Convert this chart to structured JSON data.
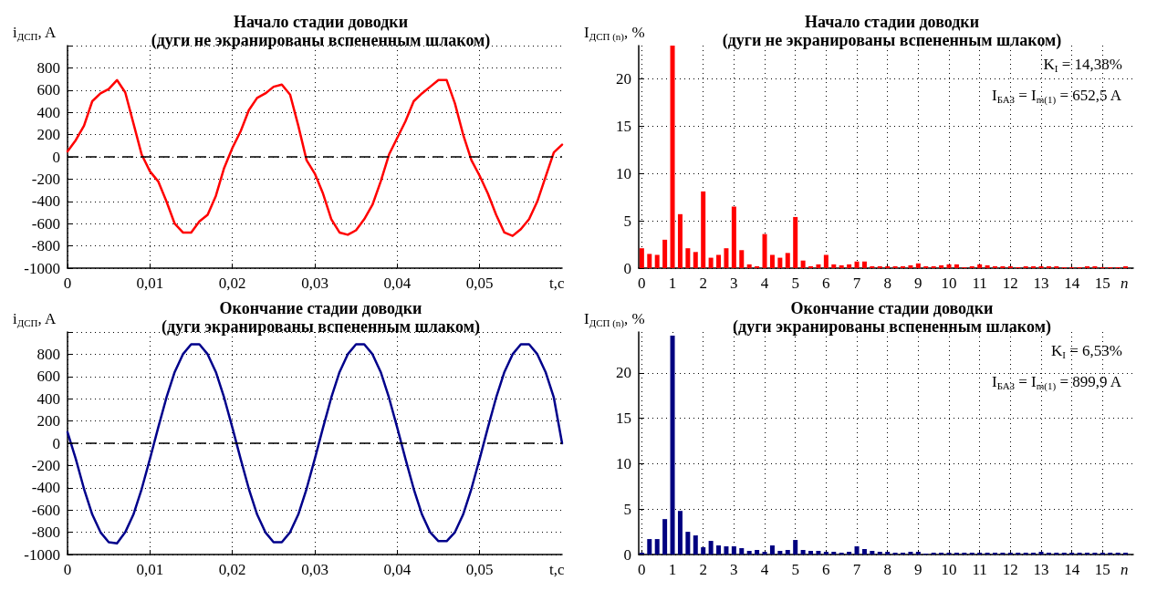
{
  "chart_data": [
    {
      "type": "line",
      "title": "Начало стадии доводки",
      "subtitle": "(дуги не экранированы вспененным шлаком)",
      "xlabel": "t,c",
      "ylabel": "i$_{ДСП}$, A",
      "x": [
        0,
        0.001,
        0.002,
        0.003,
        0.004,
        0.005,
        0.006,
        0.007,
        0.008,
        0.009,
        0.01,
        0.011,
        0.012,
        0.013,
        0.014,
        0.015,
        0.016,
        0.017,
        0.018,
        0.019,
        0.02,
        0.021,
        0.022,
        0.023,
        0.024,
        0.025,
        0.026,
        0.027,
        0.028,
        0.029,
        0.03,
        0.031,
        0.032,
        0.033,
        0.034,
        0.035,
        0.036,
        0.037,
        0.038,
        0.039,
        0.04,
        0.041,
        0.042,
        0.043,
        0.044,
        0.045,
        0.046,
        0.047,
        0.048,
        0.049,
        0.05,
        0.051,
        0.052,
        0.053,
        0.054,
        0.055,
        0.056,
        0.057,
        0.058,
        0.059,
        0.06
      ],
      "series": [
        {
          "color": "#ff0000",
          "values": [
            50,
            150,
            280,
            500,
            570,
            610,
            690,
            580,
            300,
            20,
            -130,
            -220,
            -400,
            -600,
            -680,
            -680,
            -580,
            -520,
            -350,
            -100,
            80,
            230,
            420,
            530,
            570,
            630,
            650,
            560,
            280,
            -30,
            -150,
            -330,
            -560,
            -680,
            -700,
            -660,
            -560,
            -430,
            -220,
            20,
            170,
            320,
            500,
            570,
            630,
            690,
            690,
            480,
            200,
            -30,
            -170,
            -330,
            -520,
            -680,
            -710,
            -650,
            -560,
            -400,
            -180,
            40,
            110
          ]
        }
      ],
      "xlim": [
        0,
        0.06
      ],
      "xticks": [
        0,
        {
          "value": 0.01,
          "label": "0,01"
        },
        {
          "value": 0.02,
          "label": "0,02"
        },
        {
          "value": 0.03,
          "label": "0,03"
        },
        {
          "value": 0.04,
          "label": "0,04"
        },
        {
          "value": 0.05,
          "label": "0,05"
        }
      ],
      "ylim": [
        -1000,
        1000
      ],
      "yticks": [
        -1000,
        -800,
        -600,
        -400,
        -200,
        0,
        200,
        400,
        600,
        800,
        {
          "value": 1000,
          "label": null
        }
      ],
      "ref_lines": [
        {
          "axis": "y",
          "value": 0,
          "color": "#000000",
          "line_style": "dashed"
        }
      ],
      "grid": true,
      "marker": "none",
      "line_style": "solid"
    },
    {
      "type": "bar",
      "title": "Начало стадии доводки",
      "subtitle": "(дуги не экранированы вспененным шлаком)",
      "xlabel": "n",
      "ylabel": "I$_{ДСП (n)}$, %",
      "annotations": [
        "K$_{I}$ = 14,38%",
        "I$_{БАЗ}$ = I$_{m(1)}$ = 652,5 A"
      ],
      "x": [
        0,
        0.25,
        0.5,
        0.75,
        1,
        1.25,
        1.5,
        1.75,
        2,
        2.25,
        2.5,
        2.75,
        3,
        3.25,
        3.5,
        3.75,
        4,
        4.25,
        4.5,
        4.75,
        5,
        5.25,
        5.5,
        5.75,
        6,
        6.25,
        6.5,
        6.75,
        7,
        7.25,
        7.5,
        7.75,
        8,
        8.25,
        8.5,
        8.75,
        9,
        9.25,
        9.5,
        9.75,
        10,
        10.25,
        10.5,
        10.75,
        11,
        11.25,
        11.5,
        11.75,
        12,
        12.25,
        12.5,
        12.75,
        13,
        13.25,
        13.5,
        13.75,
        14,
        14.25,
        14.5,
        14.75,
        15,
        15.25,
        15.5,
        15.75
      ],
      "series": [
        {
          "color": "#ff0000",
          "values": [
            2.1,
            1.5,
            1.4,
            3.0,
            23.5,
            5.7,
            2.1,
            1.7,
            8.1,
            1.1,
            1.4,
            2.1,
            6.5,
            1.9,
            0.4,
            0.2,
            3.6,
            1.4,
            1.1,
            1.6,
            5.4,
            0.8,
            0.2,
            0.4,
            1.4,
            0.4,
            0.3,
            0.4,
            0.7,
            0.7,
            0.2,
            0.2,
            0.2,
            0.2,
            0.2,
            0.3,
            0.5,
            0.2,
            0.2,
            0.3,
            0.4,
            0.4,
            0.1,
            0.2,
            0.4,
            0.3,
            0.2,
            0.2,
            0.2,
            0.1,
            0.2,
            0.2,
            0.2,
            0.2,
            0.2,
            0.1,
            0.1,
            0.1,
            0.2,
            0.2,
            0.1,
            0.1,
            0.1,
            0.2
          ]
        }
      ],
      "xlim": [
        -0.1,
        16
      ],
      "xticks": [
        0,
        1,
        2,
        3,
        4,
        5,
        6,
        7,
        8,
        9,
        10,
        11,
        12,
        13,
        14,
        15
      ],
      "ylim": [
        0,
        23.5
      ],
      "yticks": [
        0,
        5,
        10,
        15,
        20
      ],
      "grid": true
    },
    {
      "type": "line",
      "title": "Окончание стадии доводки",
      "subtitle": "(дуги экранированы вспененным шлаком)",
      "xlabel": "t,c",
      "ylabel": "i$_{ДСП}$, A",
      "x": [
        0,
        0.001,
        0.002,
        0.003,
        0.004,
        0.005,
        0.006,
        0.007,
        0.008,
        0.009,
        0.01,
        0.011,
        0.012,
        0.013,
        0.014,
        0.015,
        0.016,
        0.017,
        0.018,
        0.019,
        0.02,
        0.021,
        0.022,
        0.023,
        0.024,
        0.025,
        0.026,
        0.027,
        0.028,
        0.029,
        0.03,
        0.031,
        0.032,
        0.033,
        0.034,
        0.035,
        0.036,
        0.037,
        0.038,
        0.039,
        0.04,
        0.041,
        0.042,
        0.043,
        0.044,
        0.045,
        0.046,
        0.047,
        0.048,
        0.049,
        0.05,
        0.051,
        0.052,
        0.053,
        0.054,
        0.055,
        0.056,
        0.057,
        0.058,
        0.059,
        0.06
      ],
      "series": [
        {
          "color": "#00008b",
          "values": [
            100,
            -140,
            -410,
            -640,
            -800,
            -890,
            -900,
            -800,
            -640,
            -410,
            -140,
            140,
            410,
            640,
            800,
            890,
            890,
            800,
            640,
            410,
            140,
            -140,
            -410,
            -640,
            -800,
            -890,
            -890,
            -800,
            -640,
            -410,
            -140,
            140,
            410,
            640,
            800,
            890,
            890,
            800,
            640,
            410,
            140,
            -140,
            -410,
            -640,
            -800,
            -880,
            -880,
            -800,
            -640,
            -410,
            -140,
            140,
            410,
            640,
            800,
            890,
            890,
            800,
            640,
            410,
            0
          ]
        }
      ],
      "xlim": [
        0,
        0.06
      ],
      "xticks": [
        0,
        {
          "value": 0.01,
          "label": "0,01"
        },
        {
          "value": 0.02,
          "label": "0,02"
        },
        {
          "value": 0.03,
          "label": "0,03"
        },
        {
          "value": 0.04,
          "label": "0,04"
        },
        {
          "value": 0.05,
          "label": "0,05"
        }
      ],
      "ylim": [
        -1000,
        1000
      ],
      "yticks": [
        -1000,
        -800,
        -600,
        -400,
        -200,
        0,
        200,
        400,
        600,
        800,
        {
          "value": 1000,
          "label": null
        }
      ],
      "ref_lines": [
        {
          "axis": "y",
          "value": 0,
          "color": "#000000",
          "line_style": "dashed"
        }
      ],
      "grid": true,
      "marker": "none",
      "line_style": "solid"
    },
    {
      "type": "bar",
      "title": "Окончание стадии доводки",
      "subtitle": "(дуги экранированы вспененным шлаком)",
      "xlabel": "n",
      "ylabel": "I$_{ДСП (n)}$, %",
      "annotations": [
        "K$_{I}$ = 6,53%",
        "I$_{БАЗ}$ = I$_{m(1)}$ = 899,9 A"
      ],
      "x": [
        0,
        0.25,
        0.5,
        0.75,
        1,
        1.25,
        1.5,
        1.75,
        2,
        2.25,
        2.5,
        2.75,
        3,
        3.25,
        3.5,
        3.75,
        4,
        4.25,
        4.5,
        4.75,
        5,
        5.25,
        5.5,
        5.75,
        6,
        6.25,
        6.5,
        6.75,
        7,
        7.25,
        7.5,
        7.75,
        8,
        8.25,
        8.5,
        8.75,
        9,
        9.25,
        9.5,
        9.75,
        10,
        10.25,
        10.5,
        10.75,
        11,
        11.25,
        11.5,
        11.75,
        12,
        12.25,
        12.5,
        12.75,
        13,
        13.25,
        13.5,
        13.75,
        14,
        14.25,
        14.5,
        14.75,
        15,
        15.25,
        15.5,
        15.75
      ],
      "series": [
        {
          "color": "#000080",
          "values": [
            0.2,
            1.7,
            1.7,
            3.9,
            24.1,
            4.8,
            2.5,
            2.1,
            0.8,
            1.5,
            1.0,
            0.9,
            0.9,
            0.7,
            0.4,
            0.5,
            0.3,
            1.0,
            0.4,
            0.5,
            1.6,
            0.5,
            0.4,
            0.4,
            0.3,
            0.3,
            0.2,
            0.3,
            0.9,
            0.6,
            0.4,
            0.3,
            0.3,
            0.2,
            0.2,
            0.3,
            0.3,
            0.1,
            0.2,
            0.2,
            0.2,
            0.2,
            0.2,
            0.2,
            0.2,
            0.2,
            0.2,
            0.2,
            0.2,
            0.2,
            0.2,
            0.2,
            0.3,
            0.2,
            0.2,
            0.2,
            0.2,
            0.2,
            0.2,
            0.2,
            0.2,
            0.2,
            0.2,
            0.2
          ]
        }
      ],
      "xlim": [
        -0.1,
        16
      ],
      "xticks": [
        0,
        1,
        2,
        3,
        4,
        5,
        6,
        7,
        8,
        9,
        10,
        11,
        12,
        13,
        14,
        15
      ],
      "ylim": [
        0,
        24.5
      ],
      "yticks": [
        0,
        5,
        10,
        15,
        20
      ],
      "grid": true
    }
  ]
}
